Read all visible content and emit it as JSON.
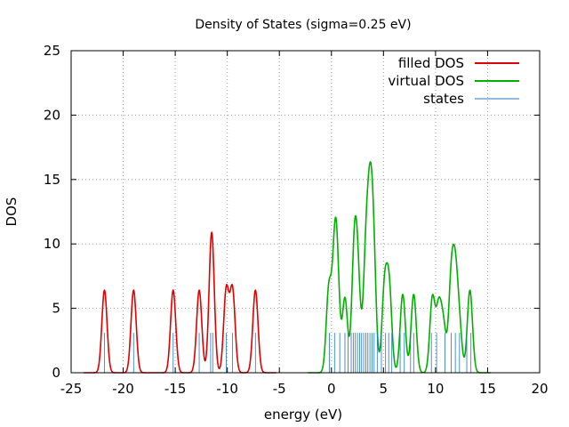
{
  "chart_data": {
    "type": "line",
    "title": "Density of States (sigma=0.25 eV)",
    "xlabel": "energy (eV)",
    "ylabel": "DOS",
    "xlim": [
      -25,
      20
    ],
    "ylim": [
      0,
      25
    ],
    "xticks": [
      -25,
      -20,
      -15,
      -10,
      -5,
      0,
      5,
      10,
      15,
      20
    ],
    "yticks": [
      0,
      5,
      10,
      15,
      20,
      25
    ],
    "grid": true,
    "legend_position": "top-right",
    "sigma": 0.25,
    "series": [
      {
        "name": "filled DOS",
        "color": "#e00000",
        "kind": "gaussian-sum",
        "peaks": [
          {
            "e": -21.8,
            "a": 1.0
          },
          {
            "e": -19.0,
            "a": 1.0
          },
          {
            "e": -15.2,
            "a": 1.0
          },
          {
            "e": -12.7,
            "a": 1.0
          },
          {
            "e": -11.5,
            "a": 1.7
          },
          {
            "e": -10.1,
            "a": 1.0
          },
          {
            "e": -9.5,
            "a": 1.0
          },
          {
            "e": -7.3,
            "a": 1.0
          }
        ]
      },
      {
        "name": "virtual DOS",
        "color": "#00b000",
        "kind": "gaussian-sum",
        "peaks": [
          {
            "e": -0.25,
            "a": 1.0
          },
          {
            "e": 0.3,
            "a": 1.1
          },
          {
            "e": 0.55,
            "a": 1.0
          },
          {
            "e": 1.3,
            "a": 0.9
          },
          {
            "e": 2.2,
            "a": 1.4
          },
          {
            "e": 2.55,
            "a": 1.0
          },
          {
            "e": 3.3,
            "a": 1.3
          },
          {
            "e": 3.7,
            "a": 1.7
          },
          {
            "e": 4.05,
            "a": 1.3
          },
          {
            "e": 5.1,
            "a": 1.0
          },
          {
            "e": 5.55,
            "a": 1.0
          },
          {
            "e": 6.85,
            "a": 0.95
          },
          {
            "e": 7.9,
            "a": 0.95
          },
          {
            "e": 9.7,
            "a": 0.9
          },
          {
            "e": 10.3,
            "a": 0.75
          },
          {
            "e": 10.75,
            "a": 0.55
          },
          {
            "e": 11.5,
            "a": 1.05
          },
          {
            "e": 11.9,
            "a": 1.05
          },
          {
            "e": 12.3,
            "a": 0.5
          },
          {
            "e": 13.3,
            "a": 1.0
          }
        ]
      },
      {
        "name": "states",
        "color": "#1f77c4",
        "kind": "sticks",
        "stick_height": 3.1,
        "energies": [
          -21.8,
          -19.0,
          -15.2,
          -12.7,
          -11.6,
          -11.4,
          -10.1,
          -9.5,
          -7.3,
          -0.2,
          0.3,
          0.8,
          1.3,
          1.6,
          1.9,
          2.1,
          2.3,
          2.5,
          2.7,
          2.9,
          3.1,
          3.3,
          3.5,
          3.7,
          3.9,
          4.1,
          4.4,
          4.8,
          5.2,
          5.5,
          5.8,
          6.6,
          7.0,
          7.6,
          7.9,
          9.6,
          10.1,
          10.9,
          11.5,
          11.9,
          12.3,
          13.0,
          13.4
        ]
      }
    ]
  }
}
